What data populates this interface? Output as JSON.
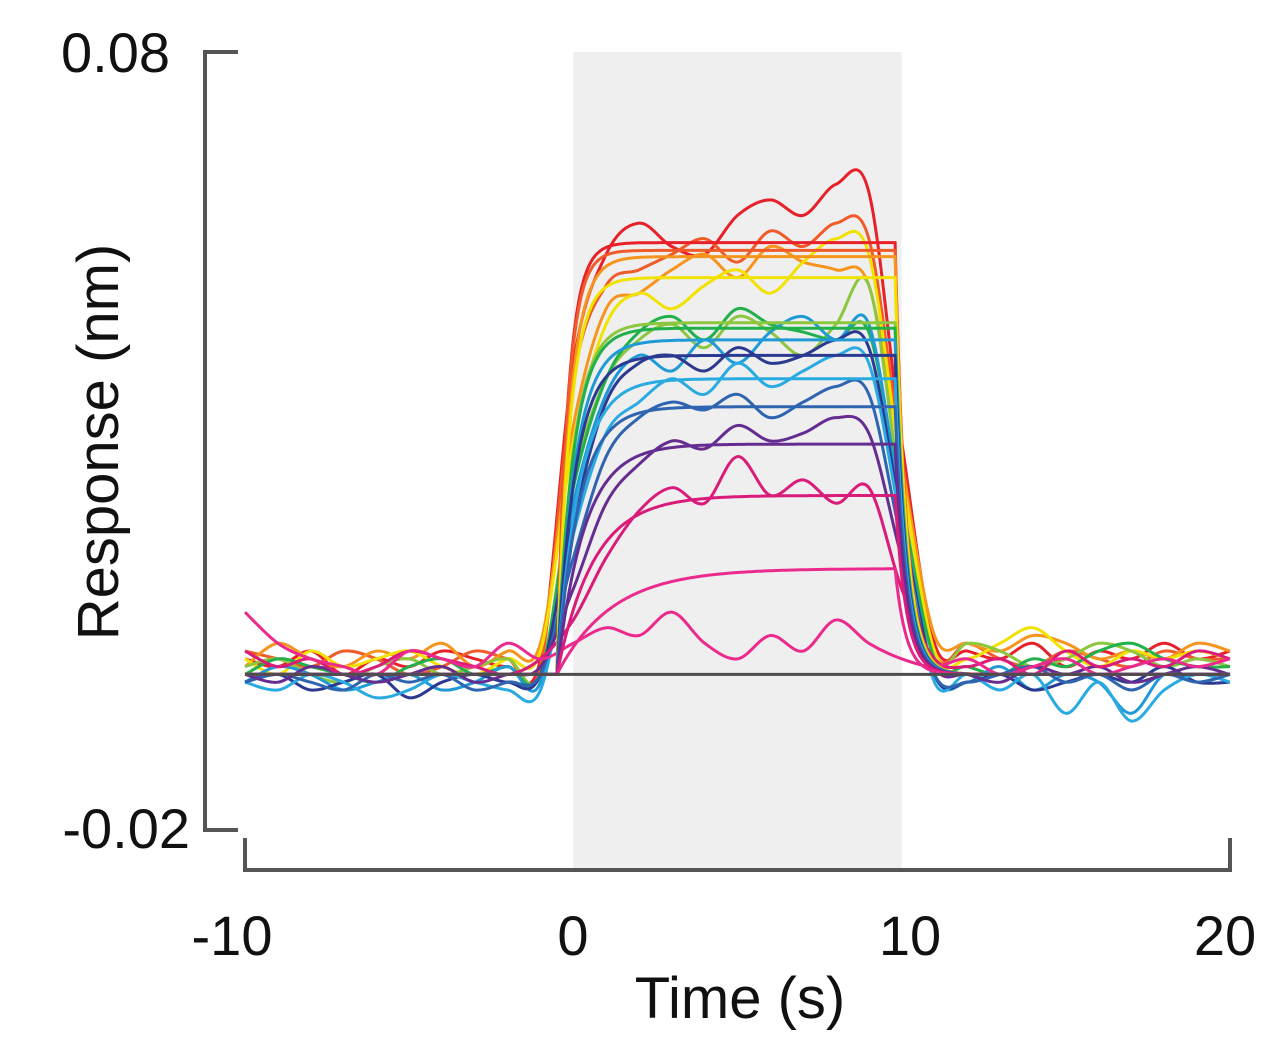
{
  "chart_data": {
    "type": "line",
    "title": "",
    "xlabel": "Time (s)",
    "ylabel": "Response (nm)",
    "xlim": [
      -10,
      20
    ],
    "ylim": [
      -0.02,
      0.08
    ],
    "x_tick_labels": [
      "-10",
      "0",
      "10",
      "20"
    ],
    "y_tick_labels": [
      "0.08",
      "-0.02"
    ],
    "grid": false,
    "legend": "none",
    "shaded_region": {
      "x_start": 0,
      "x_end": 10,
      "color": "#efefef"
    },
    "baseline": {
      "y": 0,
      "color": "#4d4d4d"
    },
    "association_start": -0.5,
    "dissociation_start": 9.8,
    "dissociation_rate": 3,
    "raw_x": [
      -10,
      -9,
      -8,
      -7,
      -6,
      -5,
      -4,
      -3,
      -2,
      -1,
      0,
      1,
      2,
      3,
      4,
      5,
      6,
      7,
      8,
      9,
      10,
      11,
      12,
      13,
      14,
      15,
      16,
      17,
      18,
      19,
      20
    ],
    "series": [
      {
        "color": "#e8202a",
        "fit_plateau": 0.0555,
        "fit_rate": 3,
        "raw": [
          0.002,
          0.001,
          0.003,
          0.0,
          0.002,
          0.001,
          0.003,
          0.002,
          0.001,
          0.002,
          0.04,
          0.054,
          0.058,
          0.055,
          0.054,
          0.059,
          0.061,
          0.059,
          0.063,
          0.062,
          0.03,
          0.004,
          0.003,
          0.002,
          0.004,
          0.001,
          0.003,
          0.002,
          0.004,
          0.002,
          0.003
        ]
      },
      {
        "color": "#f15a29",
        "fit_plateau": 0.0545,
        "fit_rate": 3,
        "raw": [
          0.003,
          0.002,
          0.001,
          0.003,
          0.002,
          0.0,
          0.001,
          0.003,
          0.002,
          0.001,
          0.038,
          0.05,
          0.052,
          0.054,
          0.056,
          0.053,
          0.057,
          0.055,
          0.058,
          0.056,
          0.028,
          0.003,
          0.004,
          0.002,
          0.001,
          0.003,
          0.002,
          0.001,
          0.003,
          0.002,
          0.002
        ]
      },
      {
        "color": "#f7941d",
        "fit_plateau": 0.0537,
        "fit_rate": 2.5,
        "raw": [
          0.001,
          0.004,
          0.002,
          0.001,
          0.003,
          0.002,
          0.004,
          0.001,
          0.003,
          0.004,
          0.032,
          0.047,
          0.049,
          0.052,
          0.054,
          0.051,
          0.055,
          0.053,
          0.052,
          0.05,
          0.027,
          0.005,
          0.004,
          0.003,
          0.005,
          0.004,
          0.002,
          0.003,
          0.002,
          0.004,
          0.003
        ]
      },
      {
        "color": "#f2e200",
        "fit_plateau": 0.051,
        "fit_rate": 2.5,
        "raw": [
          0.002,
          0.0,
          0.003,
          0.001,
          0.002,
          0.003,
          0.001,
          0.0,
          0.002,
          0.003,
          0.03,
          0.045,
          0.049,
          0.047,
          0.05,
          0.052,
          0.049,
          0.053,
          0.056,
          0.054,
          0.026,
          0.003,
          0.002,
          0.004,
          0.006,
          0.003,
          0.001,
          0.003,
          0.002,
          0.003,
          0.002
        ]
      },
      {
        "color": "#8dc63f",
        "fit_plateau": 0.0452,
        "fit_rate": 2,
        "raw": [
          0.001,
          0.002,
          0.0,
          -0.001,
          0.001,
          0.002,
          0.0,
          0.001,
          0.002,
          0.0,
          0.025,
          0.038,
          0.043,
          0.045,
          0.042,
          0.046,
          0.044,
          0.041,
          0.045,
          0.05,
          0.023,
          0.002,
          0.004,
          0.003,
          0.001,
          0.002,
          0.004,
          0.003,
          0.001,
          0.002,
          0.001
        ]
      },
      {
        "color": "#22b04b",
        "fit_plateau": 0.0445,
        "fit_rate": 2,
        "raw": [
          0.0,
          0.002,
          0.001,
          0.0,
          -0.001,
          0.001,
          0.002,
          0.0,
          0.001,
          0.0,
          0.024,
          0.038,
          0.044,
          0.046,
          0.043,
          0.047,
          0.045,
          0.044,
          0.043,
          0.044,
          0.022,
          0.002,
          0.001,
          0.0,
          0.002,
          0.001,
          0.003,
          0.004,
          0.002,
          0.001,
          0.001
        ]
      },
      {
        "color": "#1f9ad6",
        "fit_plateau": 0.043,
        "fit_rate": 1.8,
        "raw": [
          -0.001,
          0.001,
          0.0,
          -0.002,
          -0.001,
          0.0,
          -0.002,
          -0.001,
          0.001,
          -0.001,
          0.022,
          0.036,
          0.041,
          0.039,
          0.043,
          0.04,
          0.044,
          0.046,
          0.043,
          0.045,
          0.021,
          0.0,
          -0.001,
          0.001,
          -0.002,
          0.0,
          -0.001,
          -0.005,
          0.0,
          -0.001,
          0.0
        ]
      },
      {
        "color": "#2b3990",
        "fit_plateau": 0.041,
        "fit_rate": 1.8,
        "raw": [
          -0.001,
          0.0,
          -0.002,
          -0.001,
          0.0,
          -0.003,
          -0.001,
          0.0,
          -0.001,
          0.0,
          0.02,
          0.035,
          0.04,
          0.041,
          0.039,
          0.042,
          0.04,
          0.041,
          0.043,
          0.042,
          0.02,
          0.0,
          -0.001,
          0.0,
          -0.002,
          -0.001,
          0.0,
          -0.001,
          0.001,
          -0.001,
          -0.001
        ]
      },
      {
        "color": "#29abe2",
        "fit_plateau": 0.038,
        "fit_rate": 1.5,
        "raw": [
          -0.001,
          -0.002,
          0.0,
          -0.001,
          -0.003,
          -0.002,
          0.0,
          -0.001,
          -0.002,
          -0.002,
          0.018,
          0.031,
          0.035,
          0.038,
          0.036,
          0.04,
          0.037,
          0.039,
          0.041,
          0.04,
          0.019,
          -0.001,
          0.0,
          -0.002,
          0.0,
          -0.005,
          -0.001,
          -0.006,
          -0.002,
          0.0,
          -0.001
        ]
      },
      {
        "color": "#2e64b0",
        "fit_plateau": 0.0344,
        "fit_rate": 1.5,
        "raw": [
          -0.001,
          0.0,
          -0.001,
          -0.002,
          0.0,
          -0.001,
          0.0,
          -0.002,
          -0.001,
          0.0,
          0.015,
          0.028,
          0.033,
          0.035,
          0.034,
          0.036,
          0.033,
          0.035,
          0.037,
          0.036,
          0.017,
          0.0,
          -0.001,
          0.0,
          0.001,
          -0.001,
          0.0,
          -0.002,
          0.0,
          -0.001,
          0.0
        ]
      },
      {
        "color": "#662d91",
        "fit_plateau": 0.0296,
        "fit_rate": 1.2,
        "raw": [
          0.0,
          -0.001,
          0.001,
          0.0,
          -0.001,
          0.0,
          0.001,
          -0.001,
          0.0,
          0.001,
          0.011,
          0.022,
          0.027,
          0.03,
          0.029,
          0.032,
          0.03,
          0.031,
          0.033,
          0.031,
          0.015,
          0.001,
          0.0,
          -0.001,
          0.001,
          0.0,
          0.001,
          -0.001,
          0.0,
          0.001,
          0.0
        ]
      },
      {
        "color": "#d91c7a",
        "fit_plateau": 0.023,
        "fit_rate": 0.9,
        "raw": [
          0.003,
          0.001,
          0.002,
          0.0,
          0.001,
          0.003,
          0.002,
          0.001,
          0.0,
          0.002,
          0.007,
          0.015,
          0.021,
          0.024,
          0.022,
          0.028,
          0.023,
          0.025,
          0.022,
          0.024,
          0.011,
          0.002,
          0.001,
          0.002,
          0.0,
          0.003,
          0.001,
          0.002,
          0.001,
          0.003,
          0.002
        ]
      },
      {
        "color": "#ec2a8e",
        "fit_plateau": 0.0136,
        "fit_rate": 0.6,
        "raw": [
          0.008,
          0.004,
          0.002,
          0.001,
          0.0,
          0.003,
          0.002,
          0.001,
          0.004,
          0.002,
          0.004,
          0.006,
          0.005,
          0.008,
          0.004,
          0.002,
          0.005,
          0.003,
          0.007,
          0.004,
          0.002,
          0.001,
          0.002,
          0.0,
          0.001,
          0.002,
          0.0,
          0.001,
          0.002,
          0.001,
          0.002
        ]
      }
    ]
  }
}
